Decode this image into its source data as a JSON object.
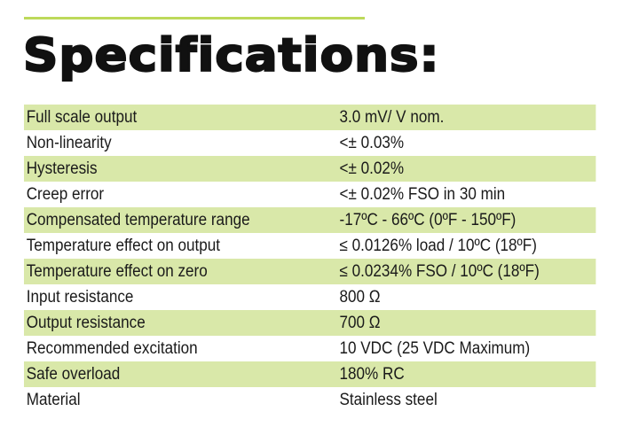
{
  "title": "Specifications:",
  "colors": {
    "accent_rule": "#bdd95a",
    "row_shade": "#d9e8a9",
    "text": "#1a1a1a"
  },
  "specs": [
    {
      "label": "Full scale output",
      "value": "3.0 mV/ V nom."
    },
    {
      "label": "Non-linearity",
      "value": "<± 0.03%"
    },
    {
      "label": "Hysteresis",
      "value": "<± 0.02%"
    },
    {
      "label": "Creep error",
      "value": "<± 0.02% FSO in 30 min"
    },
    {
      "label": "Compensated temperature range",
      "value": "-17ºC - 66ºC (0ºF - 150ºF)"
    },
    {
      "label": "Temperature effect on output",
      "value": "≤ 0.0126% load / 10ºC (18ºF)"
    },
    {
      "label": "Temperature effect on zero",
      "value": "≤ 0.0234% FSO / 10ºC (18ºF)"
    },
    {
      "label": "Input resistance",
      "value": "800 Ω"
    },
    {
      "label": "Output resistance",
      "value": "700 Ω"
    },
    {
      "label": "Recommended excitation",
      "value": "10 VDC (25 VDC Maximum)"
    },
    {
      "label": "Safe overload",
      "value": "180%  RC"
    },
    {
      "label": "Material",
      "value": "Stainless steel"
    }
  ]
}
